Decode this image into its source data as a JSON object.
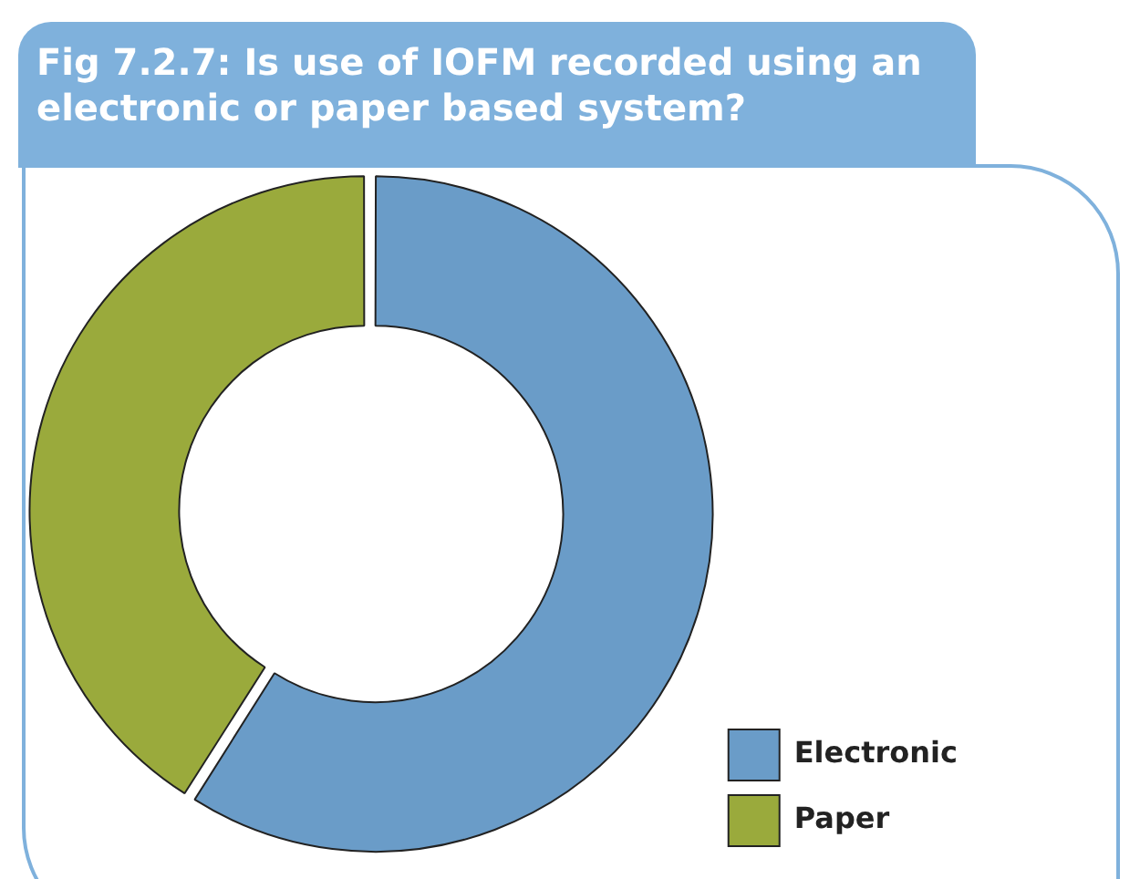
{
  "chart_data": {
    "type": "donut",
    "title": "Fig 7.2.7: Is use of IOFM recorded using an electronic or paper based system?",
    "categories": [
      "Electronic",
      "Paper"
    ],
    "values": [
      59,
      41
    ],
    "colors": [
      "#6a9cc8",
      "#9aaa3c"
    ],
    "legend": "bottom right"
  }
}
